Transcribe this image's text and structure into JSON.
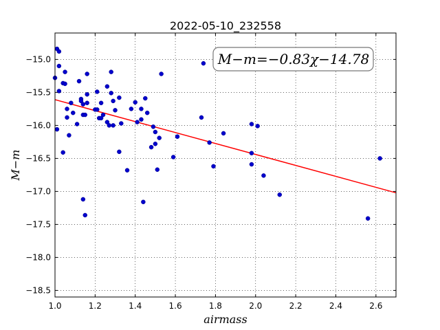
{
  "chart_data": {
    "type": "scatter",
    "title": "2022-05-10_232558",
    "xlabel": "airmass",
    "ylabel": "M−m",
    "xlim": [
      1.0,
      2.7
    ],
    "ylim": [
      -18.6,
      -14.6
    ],
    "x_ticks": [
      1.0,
      1.2,
      1.4,
      1.6,
      1.8,
      2.0,
      2.2,
      2.4,
      2.6
    ],
    "x_tick_labels": [
      "1.0",
      "1.2",
      "1.4",
      "1.6",
      "1.8",
      "2.0",
      "2.2",
      "2.4",
      "2.6"
    ],
    "y_ticks": [
      -15.0,
      -15.5,
      -16.0,
      -16.5,
      -17.0,
      -17.5,
      -18.0,
      -18.5
    ],
    "y_tick_labels": [
      "−15.0",
      "−15.5",
      "−16.0",
      "−16.5",
      "−17.0",
      "−17.5",
      "−18.0",
      "−18.5"
    ],
    "grid": true,
    "annotation": "M−m=−0.83χ−14.78",
    "fit": {
      "slope": -0.83,
      "intercept": -14.78,
      "color": "#ff0000"
    },
    "point_color": "#0000cc",
    "points": [
      {
        "x": 1.0,
        "y": -15.28
      },
      {
        "x": 1.01,
        "y": -14.84
      },
      {
        "x": 1.02,
        "y": -14.88
      },
      {
        "x": 1.02,
        "y": -15.1
      },
      {
        "x": 1.02,
        "y": -15.48
      },
      {
        "x": 1.01,
        "y": -16.06
      },
      {
        "x": 1.04,
        "y": -16.41
      },
      {
        "x": 1.04,
        "y": -15.36
      },
      {
        "x": 1.05,
        "y": -15.37
      },
      {
        "x": 1.05,
        "y": -15.19
      },
      {
        "x": 1.06,
        "y": -15.75
      },
      {
        "x": 1.06,
        "y": -15.88
      },
      {
        "x": 1.07,
        "y": -16.15
      },
      {
        "x": 1.08,
        "y": -15.66
      },
      {
        "x": 1.09,
        "y": -15.81
      },
      {
        "x": 1.11,
        "y": -15.98
      },
      {
        "x": 1.12,
        "y": -15.33
      },
      {
        "x": 1.13,
        "y": -15.6
      },
      {
        "x": 1.13,
        "y": -15.63
      },
      {
        "x": 1.14,
        "y": -15.68
      },
      {
        "x": 1.14,
        "y": -15.84
      },
      {
        "x": 1.14,
        "y": -17.12
      },
      {
        "x": 1.15,
        "y": -17.36
      },
      {
        "x": 1.15,
        "y": -15.84
      },
      {
        "x": 1.16,
        "y": -15.22
      },
      {
        "x": 1.16,
        "y": -15.53
      },
      {
        "x": 1.16,
        "y": -15.66
      },
      {
        "x": 1.2,
        "y": -15.76
      },
      {
        "x": 1.21,
        "y": -15.76
      },
      {
        "x": 1.21,
        "y": -15.49
      },
      {
        "x": 1.22,
        "y": -15.89
      },
      {
        "x": 1.23,
        "y": -15.89
      },
      {
        "x": 1.23,
        "y": -15.66
      },
      {
        "x": 1.24,
        "y": -15.84
      },
      {
        "x": 1.26,
        "y": -15.41
      },
      {
        "x": 1.26,
        "y": -15.95
      },
      {
        "x": 1.27,
        "y": -16.0
      },
      {
        "x": 1.28,
        "y": -15.19
      },
      {
        "x": 1.28,
        "y": -15.51
      },
      {
        "x": 1.29,
        "y": -15.63
      },
      {
        "x": 1.29,
        "y": -16.0
      },
      {
        "x": 1.3,
        "y": -15.77
      },
      {
        "x": 1.32,
        "y": -15.58
      },
      {
        "x": 1.32,
        "y": -16.4
      },
      {
        "x": 1.33,
        "y": -15.97
      },
      {
        "x": 1.36,
        "y": -16.68
      },
      {
        "x": 1.38,
        "y": -15.75
      },
      {
        "x": 1.4,
        "y": -15.65
      },
      {
        "x": 1.41,
        "y": -15.95
      },
      {
        "x": 1.43,
        "y": -15.75
      },
      {
        "x": 1.43,
        "y": -15.91
      },
      {
        "x": 1.44,
        "y": -17.16
      },
      {
        "x": 1.45,
        "y": -15.59
      },
      {
        "x": 1.46,
        "y": -15.81
      },
      {
        "x": 1.48,
        "y": -16.33
      },
      {
        "x": 1.49,
        "y": -16.02
      },
      {
        "x": 1.5,
        "y": -16.28
      },
      {
        "x": 1.5,
        "y": -16.1
      },
      {
        "x": 1.51,
        "y": -16.67
      },
      {
        "x": 1.52,
        "y": -16.19
      },
      {
        "x": 1.53,
        "y": -15.22
      },
      {
        "x": 1.59,
        "y": -16.48
      },
      {
        "x": 1.61,
        "y": -16.17
      },
      {
        "x": 1.73,
        "y": -15.88
      },
      {
        "x": 1.74,
        "y": -15.06
      },
      {
        "x": 1.77,
        "y": -16.26
      },
      {
        "x": 1.79,
        "y": -16.62
      },
      {
        "x": 1.84,
        "y": -16.12
      },
      {
        "x": 1.98,
        "y": -15.98
      },
      {
        "x": 1.98,
        "y": -16.42
      },
      {
        "x": 1.98,
        "y": -16.59
      },
      {
        "x": 2.01,
        "y": -16.01
      },
      {
        "x": 2.04,
        "y": -16.76
      },
      {
        "x": 2.12,
        "y": -17.05
      },
      {
        "x": 2.56,
        "y": -17.41
      },
      {
        "x": 2.62,
        "y": -16.5
      }
    ]
  }
}
